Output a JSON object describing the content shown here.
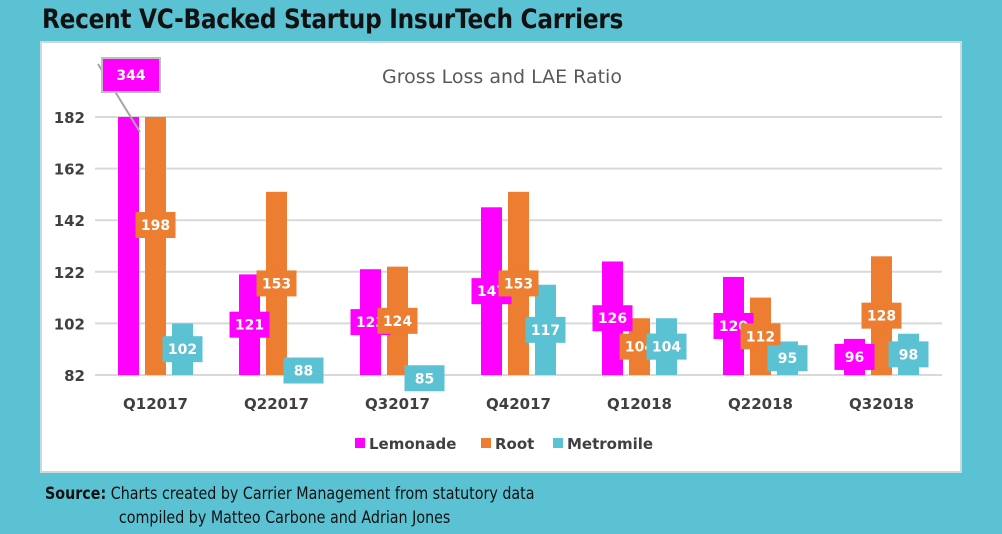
{
  "header": {
    "title": "Recent VC-Backed Startup InsurTech Carriers"
  },
  "footer": {
    "source_label": "Source:",
    "source_line1": "Charts created by Carrier Management from statutory data",
    "source_line2": "compiled by Matteo Carbone and Adrian Jones"
  },
  "chart_data": {
    "type": "bar",
    "title": "Gross Loss and LAE Ratio",
    "xlabel": "",
    "ylabel": "",
    "ylim": [
      82,
      182
    ],
    "yticks": [
      82,
      102,
      122,
      142,
      162,
      182
    ],
    "grid": true,
    "legend_position": "bottom",
    "categories": [
      "Q12017",
      "Q22017",
      "Q32017",
      "Q42017",
      "Q12018",
      "Q22018",
      "Q32018"
    ],
    "series": [
      {
        "name": "Lemonade",
        "color": "#ff00ff",
        "values": [
          344,
          121,
          123,
          147,
          126,
          120,
          96
        ]
      },
      {
        "name": "Root",
        "color": "#ed7d31",
        "values": [
          198,
          153,
          124,
          153,
          104,
          112,
          128
        ]
      },
      {
        "name": "Metromile",
        "color": "#5bc2d4",
        "values": [
          102,
          88,
          85,
          117,
          104,
          95,
          98
        ]
      }
    ]
  }
}
